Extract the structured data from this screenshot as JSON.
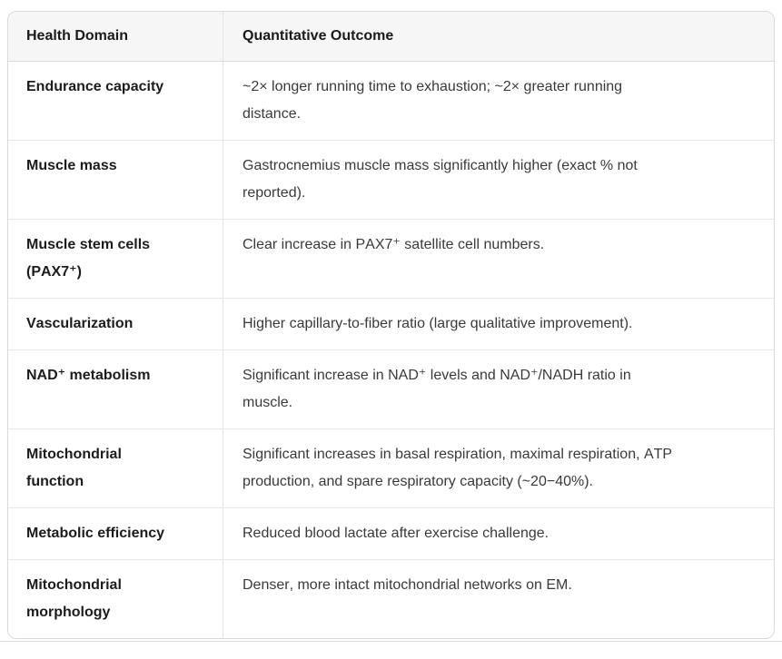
{
  "table": {
    "headers": [
      "Health Domain",
      "Quantitative Outcome"
    ],
    "rows": [
      {
        "domain": "Endurance capacity",
        "outcome": "~2× longer running time to exhaustion; ~2× greater running distance."
      },
      {
        "domain": "Muscle mass",
        "outcome": "Gastrocnemius muscle mass significantly higher (exact % not reported)."
      },
      {
        "domain": "Muscle stem cells (PAX7⁺)",
        "outcome": "Clear increase in PAX7⁺ satellite cell numbers."
      },
      {
        "domain": "Vascularization",
        "outcome": "Higher capillary-to-fiber ratio (large qualitative improvement)."
      },
      {
        "domain": "NAD⁺ metabolism",
        "outcome": "Significant increase in NAD⁺ levels and NAD⁺/NADH ratio in muscle."
      },
      {
        "domain": "Mitochondrial function",
        "outcome": "Significant increases in basal respiration, maximal respiration, ATP production, and spare respiratory capacity (~20−40%)."
      },
      {
        "domain": "Metabolic efficiency",
        "outcome": "Reduced blood lactate after exercise challenge."
      },
      {
        "domain": "Mitochondrial morphology",
        "outcome": "Denser, more intact mitochondrial networks on EM."
      }
    ],
    "colors": {
      "header_bg": "#f6f6f6",
      "outer_border": "#d9d9d9",
      "row_divider": "#e7e7e7",
      "column_divider": "#e2e2e2",
      "header_text": "#1a1a1a",
      "domain_text": "#1c1c1c",
      "outcome_text": "#3a3a3a"
    }
  }
}
